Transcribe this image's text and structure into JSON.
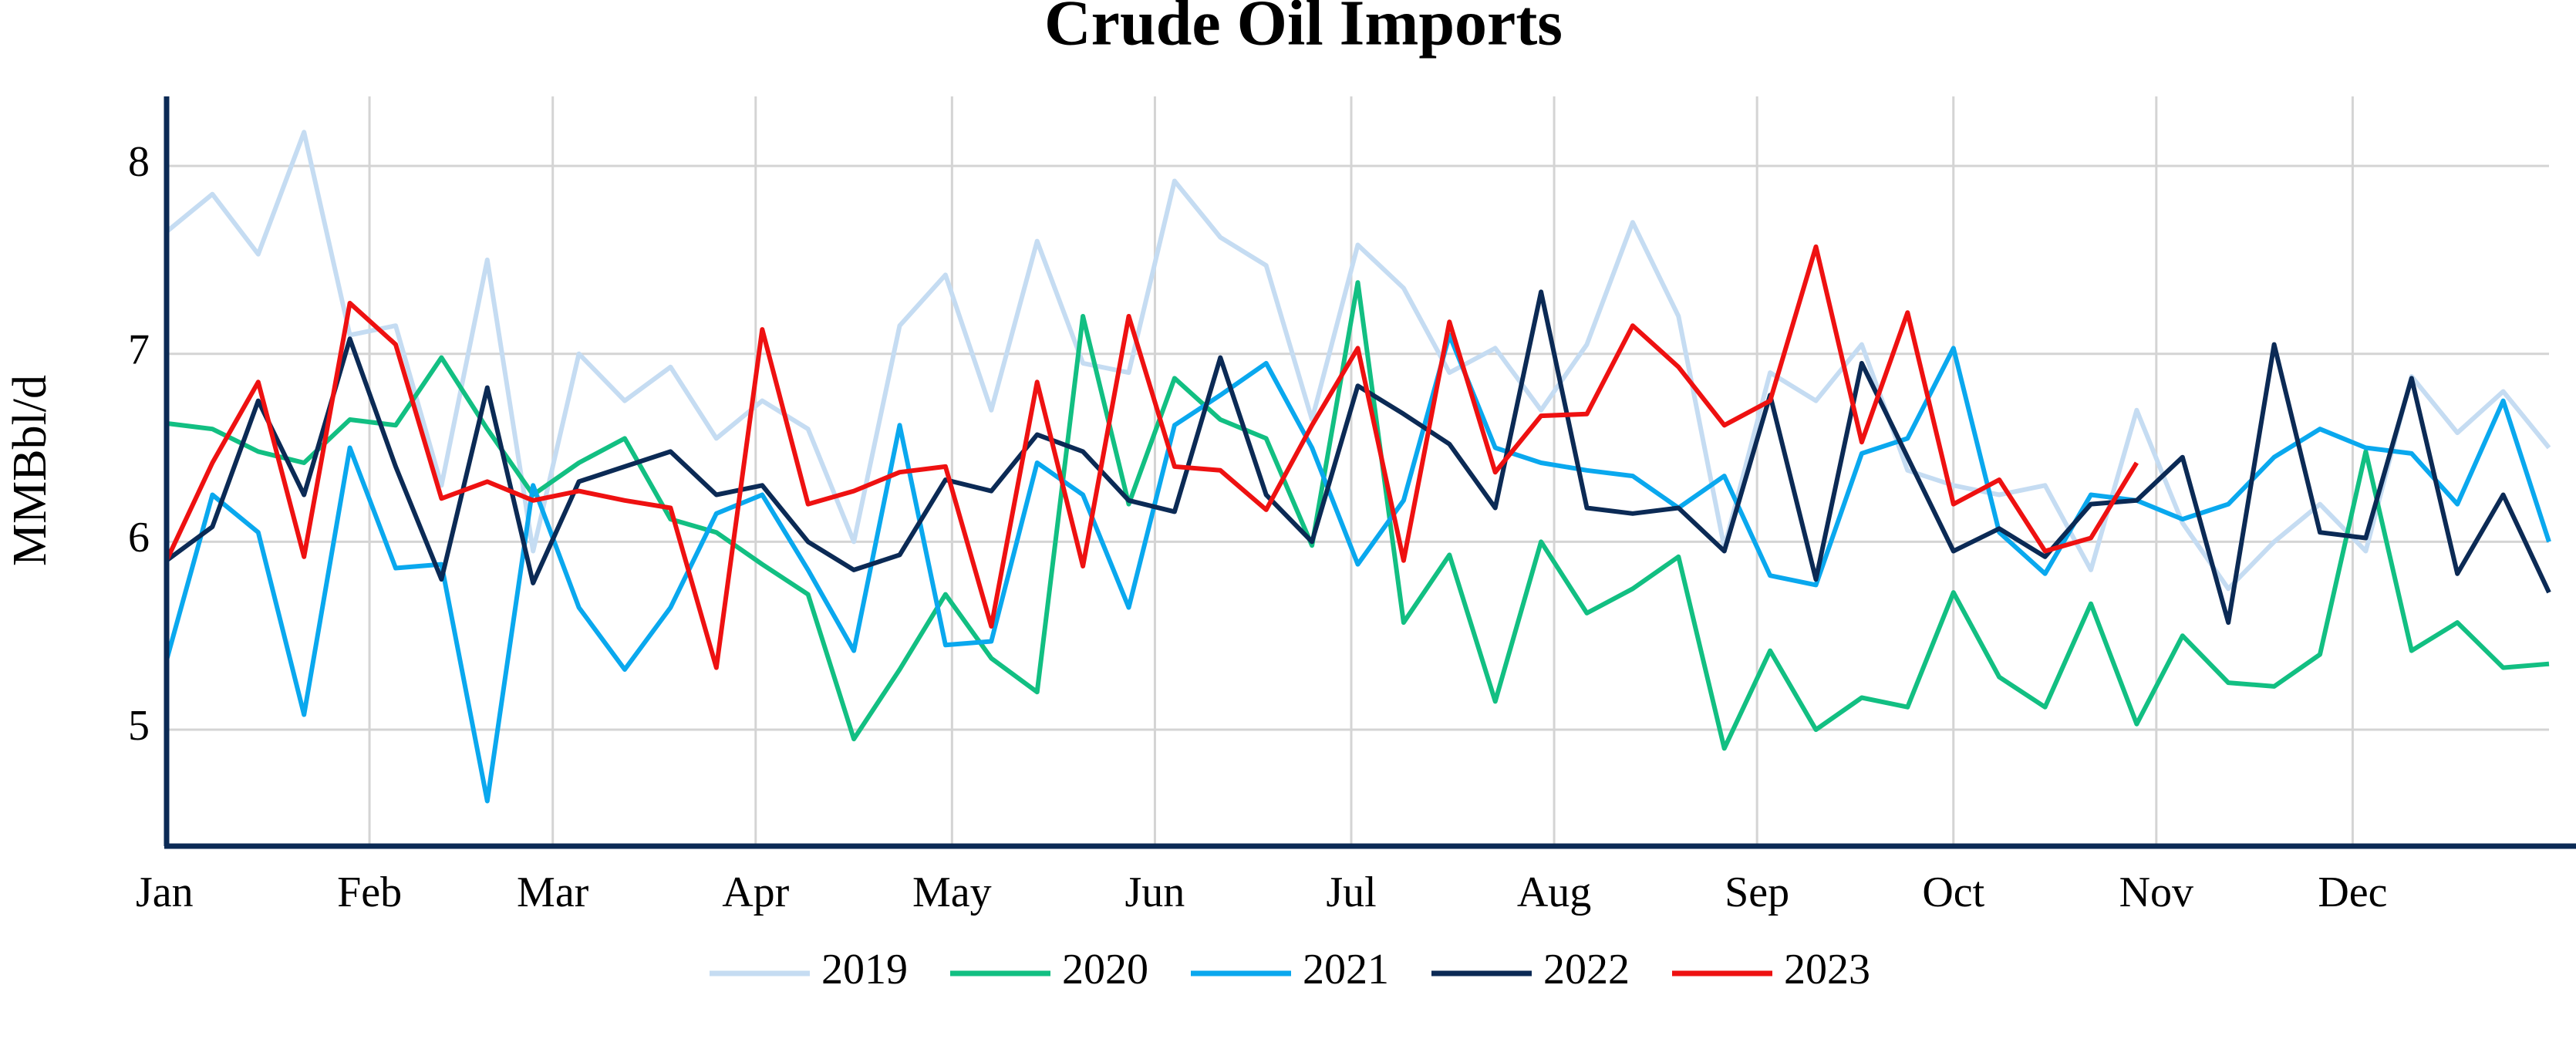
{
  "chart_data": {
    "type": "line",
    "title": "Crude Oil Imports",
    "y_label": "MMBbl/d",
    "x": [
      0,
      7,
      14,
      21,
      28,
      35,
      42,
      49,
      56,
      63,
      70,
      77,
      84,
      91,
      98,
      105,
      112,
      119,
      126,
      133,
      140,
      147,
      154,
      161,
      168,
      175,
      182,
      189,
      196,
      203,
      210,
      217,
      224,
      231,
      238,
      245,
      252,
      259,
      266,
      273,
      280,
      287,
      294,
      301,
      308,
      315,
      322,
      329,
      336,
      343,
      350,
      357,
      364
    ],
    "xlim": [
      0,
      364
    ],
    "xticks": [
      {
        "value": 0,
        "label": "Jan"
      },
      {
        "value": 31,
        "label": "Feb"
      },
      {
        "value": 59,
        "label": "Mar"
      },
      {
        "value": 90,
        "label": "Apr"
      },
      {
        "value": 120,
        "label": "May"
      },
      {
        "value": 151,
        "label": "Jun"
      },
      {
        "value": 181,
        "label": "Jul"
      },
      {
        "value": 212,
        "label": "Aug"
      },
      {
        "value": 243,
        "label": "Sep"
      },
      {
        "value": 273,
        "label": "Oct"
      },
      {
        "value": 304,
        "label": "Nov"
      },
      {
        "value": 334,
        "label": "Dec"
      }
    ],
    "ylim": [
      4.38,
      8.37
    ],
    "yticks": [
      5,
      6,
      7,
      8
    ],
    "grid": true,
    "legend": "bottom",
    "series": [
      {
        "name": "2019",
        "color": "#c5dcf2",
        "values": [
          7.65,
          7.85,
          7.53,
          8.18,
          7.1,
          7.15,
          6.3,
          7.5,
          5.95,
          7.0,
          6.75,
          6.93,
          6.55,
          6.75,
          6.6,
          6.0,
          7.15,
          7.42,
          6.7,
          7.6,
          6.95,
          6.9,
          7.92,
          7.62,
          7.47,
          6.65,
          7.58,
          7.35,
          6.9,
          7.03,
          6.7,
          7.05,
          7.7,
          7.2,
          5.97,
          6.9,
          6.75,
          7.05,
          6.38,
          6.3,
          6.25,
          6.3,
          5.85,
          6.7,
          6.1,
          5.75,
          6.0,
          6.2,
          5.95,
          6.88,
          6.58,
          6.8,
          6.5
        ]
      },
      {
        "name": "2020",
        "color": "#12bf82",
        "values": [
          6.63,
          6.6,
          6.48,
          6.42,
          6.65,
          6.62,
          6.98,
          6.6,
          6.25,
          6.42,
          6.55,
          6.12,
          6.05,
          5.88,
          5.72,
          4.95,
          5.32,
          5.72,
          5.38,
          5.2,
          7.2,
          6.2,
          6.87,
          6.65,
          6.55,
          5.98,
          7.38,
          5.57,
          5.93,
          5.15,
          6.0,
          5.62,
          5.75,
          5.92,
          4.9,
          5.42,
          5.0,
          5.17,
          5.12,
          5.73,
          5.28,
          5.12,
          5.67,
          5.03,
          5.5,
          5.25,
          5.23,
          5.4,
          6.48,
          5.42,
          5.57,
          5.33,
          5.35
        ]
      },
      {
        "name": "2021",
        "color": "#0aa8ee",
        "values": [
          5.37,
          6.25,
          6.05,
          5.08,
          6.5,
          5.86,
          5.88,
          4.62,
          6.3,
          5.65,
          5.32,
          5.65,
          6.15,
          6.25,
          5.85,
          5.42,
          6.62,
          5.45,
          5.47,
          6.42,
          6.25,
          5.65,
          6.62,
          6.78,
          6.95,
          6.5,
          5.88,
          6.22,
          7.1,
          6.5,
          6.42,
          6.38,
          6.35,
          6.18,
          6.35,
          5.82,
          5.77,
          6.47,
          6.55,
          7.03,
          6.05,
          5.83,
          6.25,
          6.22,
          6.12,
          6.2,
          6.45,
          6.6,
          6.5,
          6.47,
          6.2,
          6.75,
          6.0
        ]
      },
      {
        "name": "2022",
        "color": "#0b2a55",
        "values": [
          5.9,
          6.08,
          6.75,
          6.25,
          7.08,
          6.4,
          5.8,
          6.82,
          5.78,
          6.32,
          6.4,
          6.48,
          6.25,
          6.3,
          6.0,
          5.85,
          5.93,
          6.33,
          6.27,
          6.57,
          6.48,
          6.22,
          6.16,
          6.98,
          6.25,
          6.0,
          6.83,
          6.68,
          6.52,
          6.18,
          7.33,
          6.18,
          6.15,
          6.18,
          5.95,
          6.78,
          5.8,
          6.95,
          6.45,
          5.95,
          6.07,
          5.92,
          6.2,
          6.22,
          6.45,
          5.57,
          7.05,
          6.05,
          6.02,
          6.87,
          5.83,
          6.25,
          5.73
        ]
      },
      {
        "name": "2023",
        "color": "#ee1111",
        "values": [
          5.9,
          6.42,
          6.85,
          5.92,
          7.27,
          7.05,
          6.23,
          6.32,
          6.22,
          6.27,
          6.22,
          6.18,
          5.33,
          7.13,
          6.2,
          6.27,
          6.37,
          6.4,
          5.55,
          6.85,
          5.87,
          7.2,
          6.4,
          6.38,
          6.17,
          6.62,
          7.03,
          5.9,
          7.17,
          6.37,
          6.67,
          6.68,
          7.15,
          6.93,
          6.62,
          6.75,
          7.57,
          6.53,
          7.22,
          6.2,
          6.33,
          5.95,
          6.02,
          6.42,
          null,
          null,
          null,
          null,
          null,
          null,
          null,
          null,
          null
        ]
      }
    ]
  }
}
